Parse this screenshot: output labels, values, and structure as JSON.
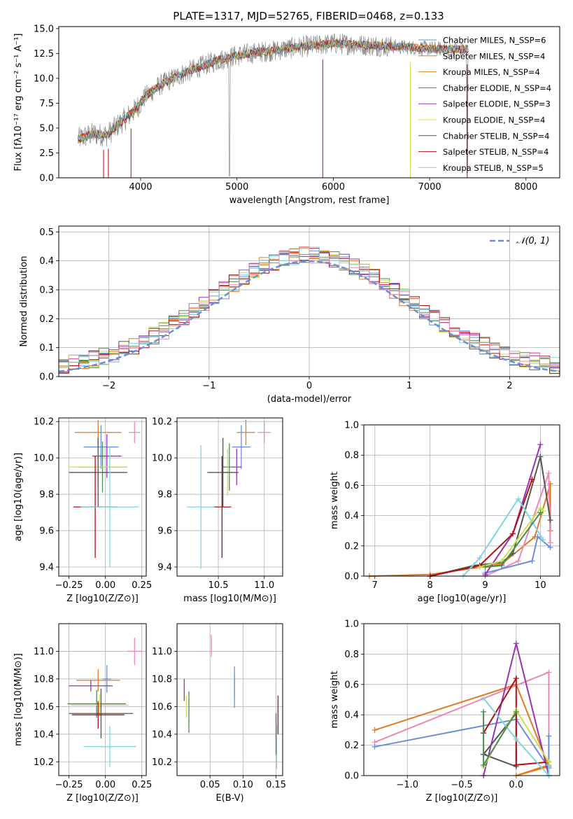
{
  "colors": {
    "chabrier_miles": "#6a8fd8",
    "salpeter_miles": "#e07b20",
    "kroupa_miles": "#e07b20",
    "chabrier_elodie": "#4f8a4f",
    "salpeter_elodie": "#9a32b4",
    "kroupa_elodie": "#c8e050",
    "chabrier_stelib": "#555555",
    "salpeter_stelib": "#b01010",
    "kroupa_stelib": "#7fd6dc",
    "pink": "#e88ab8",
    "gray_spectrum": "#888888",
    "normal_curve": "#6a8fd8"
  },
  "chart_data": [
    {
      "id": "spectrum",
      "type": "line",
      "title": "PLATE=1317, MJD=52765, FIBERID=0468, z=0.133",
      "xlabel": "wavelength [Angstrom, rest frame]",
      "ylabel": "Flux [fλ10⁻¹⁷ erg cm⁻² s⁻¹ A⁻¹]",
      "xlim": [
        3150,
        8350
      ],
      "ylim": [
        0,
        15.2
      ],
      "xticks": [
        "4000",
        "5000",
        "6000",
        "7000",
        "8000"
      ],
      "yticks": [
        "0.0",
        "2.5",
        "5.0",
        "7.5",
        "10.0",
        "12.5",
        "15.0"
      ],
      "legend_position": "right",
      "continuum": {
        "x": [
          3350,
          3500,
          3650,
          3800,
          3950,
          4050,
          4200,
          4400,
          4600,
          4800,
          5000,
          5200,
          5400,
          5600,
          5800,
          6000,
          6200,
          6400,
          6600,
          6800,
          7000,
          7200,
          7400
        ],
        "y": [
          3.9,
          4.4,
          4.3,
          5.6,
          6.9,
          8.2,
          9.3,
          10.3,
          11.1,
          11.8,
          12.3,
          12.6,
          12.8,
          13.1,
          13.3,
          13.5,
          13.4,
          13.3,
          13.2,
          13.1,
          13.0,
          12.9,
          12.9
        ]
      },
      "series": [
        {
          "name": "Chabrier MILES, N_SSP=6",
          "color": "#6a8fd8"
        },
        {
          "name": "Salpeter MILES, N_SSP=4",
          "color": "#e07b20"
        },
        {
          "name": "Kroupa MILES, N_SSP=4",
          "color": "#e07b20"
        },
        {
          "name": "Chabrier ELODIE, N_SSP=4",
          "color": "#4f8a4f"
        },
        {
          "name": "Salpeter ELODIE, N_SSP=3",
          "color": "#9a32b4"
        },
        {
          "name": "Kroupa ELODIE, N_SSP=4",
          "color": "#c8e050"
        },
        {
          "name": "Chabrier STELIB, N_SSP=4",
          "color": "#555555"
        },
        {
          "name": "Salpeter STELIB, N_SSP=4",
          "color": "#b01010"
        },
        {
          "name": "Kroupa STELIB, N_SSP=5",
          "color": "#7fd6dc"
        }
      ]
    },
    {
      "id": "histogram",
      "type": "bar",
      "xlabel": "(data-model)/error",
      "ylabel": "Normed distribution",
      "xlim": [
        -2.5,
        2.5
      ],
      "ylim": [
        0,
        0.52
      ],
      "xticks": [
        "−2",
        "−1",
        "0",
        "1",
        "2"
      ],
      "yticks": [
        "0.0",
        "0.1",
        "0.2",
        "0.3",
        "0.4",
        "0.5"
      ],
      "legend": [
        "𝒩(0, 1)"
      ],
      "legend_position": "top-right",
      "bin_width": 0.1,
      "bin_start": -2.5,
      "bins_left_values": [
        0.02,
        0.03,
        0.04,
        0.06,
        0.07,
        0.06,
        0.07,
        0.08,
        0.1,
        0.12,
        0.13,
        0.15,
        0.17,
        0.19,
        0.21,
        0.23,
        0.25,
        0.27,
        0.3,
        0.31,
        0.33,
        0.35,
        0.36,
        0.37,
        0.4,
        0.44,
        0.42
      ]
    },
    {
      "id": "age-vs-Z",
      "type": "scatter",
      "xlabel": "Z [log10(Z/Z⊙)]",
      "ylabel": "age  [log10(age/yr)]",
      "xlim": [
        -0.32,
        0.28
      ],
      "ylim": [
        9.35,
        10.22
      ],
      "xticks": [
        "−0.25",
        "0.00",
        "0.25"
      ],
      "yticks": [
        "9.4",
        "9.6",
        "9.8",
        "10.0",
        "10.2"
      ],
      "points": [
        {
          "x": 0.2,
          "xerr": 0.04,
          "y": 10.14,
          "yerr": 0.06,
          "color": "#e88ab8"
        },
        {
          "x": -0.05,
          "xerr": 0.16,
          "y": 10.14,
          "yerr": 0.07,
          "color": "#e07b20"
        },
        {
          "x": -0.03,
          "xerr": 0.12,
          "y": 10.06,
          "yerr": 0.12,
          "color": "#6a8fd8"
        },
        {
          "x": 0.01,
          "xerr": 0.1,
          "y": 10.01,
          "yerr": 0.12,
          "color": "#9a32b4"
        },
        {
          "x": -0.02,
          "xerr": 0.17,
          "y": 9.95,
          "yerr": 0.14,
          "color": "#4f8a4f"
        },
        {
          "x": -0.05,
          "xerr": 0.2,
          "y": 9.95,
          "yerr": 0.11,
          "color": "#c8e050"
        },
        {
          "x": -0.05,
          "xerr": 0.2,
          "y": 9.92,
          "yerr": 0.19,
          "color": "#555555"
        },
        {
          "x": -0.07,
          "xerr": 0.15,
          "y": 9.73,
          "yerr": 0.28,
          "color": "#b01010"
        },
        {
          "x": 0.03,
          "xerr": 0.2,
          "y": 9.73,
          "yerr": 0.33,
          "color": "#7fd6dc"
        }
      ]
    },
    {
      "id": "age-vs-mass",
      "type": "scatter",
      "xlabel": "mass [log10(M/M⊙)]",
      "ylabel": "",
      "xlim": [
        10.05,
        11.2
      ],
      "ylim": [
        9.35,
        10.22
      ],
      "xticks": [
        "10.5",
        "11.0"
      ],
      "yticks": [
        "9.4",
        "9.6",
        "9.8",
        "10.0",
        "10.2"
      ],
      "points": [
        {
          "x": 11.0,
          "xerr": 0.07,
          "y": 10.14,
          "yerr": 0.06,
          "color": "#e88ab8"
        },
        {
          "x": 10.8,
          "xerr": 0.1,
          "y": 10.14,
          "yerr": 0.07,
          "color": "#e07b20"
        },
        {
          "x": 10.75,
          "xerr": 0.1,
          "y": 10.06,
          "yerr": 0.12,
          "color": "#6a8fd8"
        },
        {
          "x": 10.7,
          "xerr": 0.05,
          "y": 9.95,
          "yerr": 0.1,
          "color": "#9a32b4"
        },
        {
          "x": 10.62,
          "xerr": 0.08,
          "y": 9.95,
          "yerr": 0.13,
          "color": "#4f8a4f"
        },
        {
          "x": 10.6,
          "xerr": 0.05,
          "y": 9.92,
          "yerr": 0.13,
          "color": "#c8e050"
        },
        {
          "x": 10.55,
          "xerr": 0.17,
          "y": 9.92,
          "yerr": 0.19,
          "color": "#555555"
        },
        {
          "x": 10.54,
          "xerr": 0.1,
          "y": 9.73,
          "yerr": 0.28,
          "color": "#b01010"
        },
        {
          "x": 10.31,
          "xerr": 0.15,
          "y": 9.73,
          "yerr": 0.34,
          "color": "#7fd6dc"
        }
      ]
    },
    {
      "id": "mass-weight-vs-age",
      "type": "line",
      "xlabel": "age  [log10(age/yr)]",
      "ylabel": "mass weight",
      "xlim": [
        6.8,
        10.35
      ],
      "ylim": [
        0,
        1.0
      ],
      "xticks": [
        "7",
        "8",
        "9",
        "10"
      ],
      "yticks": [
        "0.0",
        "0.2",
        "0.4",
        "0.6",
        "0.8",
        "1.0"
      ],
      "series": [
        {
          "color": "#e07b20",
          "x": [
            6.9,
            8.0,
            9.3,
            9.9,
            10.18,
            10.18
          ],
          "y": [
            0.0,
            0.01,
            0.08,
            0.26,
            0.61,
            0.3
          ]
        },
        {
          "color": "#e88ab8",
          "x": [
            9.0,
            9.6,
            10.15,
            10.18
          ],
          "y": [
            0.0,
            0.1,
            0.68,
            0.22
          ]
        },
        {
          "color": "#6a8fd8",
          "x": [
            9.0,
            9.85,
            9.95,
            10.18
          ],
          "y": [
            0.02,
            0.1,
            0.26,
            0.19
          ]
        },
        {
          "color": "#9a32b4",
          "x": [
            9.0,
            9.5,
            10.0
          ],
          "y": [
            0.01,
            0.28,
            0.87
          ]
        },
        {
          "color": "#555555",
          "x": [
            8.0,
            8.8,
            9.3,
            9.5,
            10.0,
            10.18
          ],
          "y": [
            0.0,
            0.07,
            0.09,
            0.15,
            0.79,
            0.37
          ]
        },
        {
          "color": "#b01010",
          "x": [
            8.0,
            8.9,
            9.5,
            9.85
          ],
          "y": [
            0.0,
            0.07,
            0.28,
            0.64
          ]
        },
        {
          "color": "#7fd6dc",
          "x": [
            8.6,
            8.9,
            9.6,
            10.05
          ],
          "y": [
            0.0,
            0.12,
            0.51,
            0.24
          ]
        },
        {
          "color": "#c8e050",
          "x": [
            8.9,
            9.3,
            10.0,
            10.05
          ],
          "y": [
            0.06,
            0.1,
            0.45,
            0.43
          ]
        },
        {
          "color": "#4f8a4f",
          "x": [
            9.0,
            9.3,
            10.0
          ],
          "y": [
            0.06,
            0.07,
            0.42
          ]
        }
      ]
    },
    {
      "id": "mass-vs-Z",
      "type": "scatter",
      "xlabel": "Z [log10(Z/Z⊙)]",
      "ylabel": "mass [log10(M/M⊙)]",
      "xlim": [
        -0.32,
        0.28
      ],
      "ylim": [
        10.1,
        11.2
      ],
      "xticks": [
        "−0.25",
        "0.00",
        "0.25"
      ],
      "yticks": [
        "10.2",
        "10.4",
        "10.6",
        "10.8",
        "11.0"
      ],
      "points": [
        {
          "x": 0.2,
          "xerr": 0.05,
          "y": 11.0,
          "yerr": 0.1,
          "color": "#e88ab8"
        },
        {
          "x": -0.05,
          "xerr": 0.15,
          "y": 10.79,
          "yerr": 0.08,
          "color": "#e07b20"
        },
        {
          "x": 0.01,
          "xerr": 0.03,
          "y": 10.8,
          "yerr": 0.1,
          "color": "#6a8fd8"
        },
        {
          "x": -0.1,
          "xerr": 0.15,
          "y": 10.75,
          "yerr": 0.04,
          "color": "#9a32b4"
        },
        {
          "x": -0.06,
          "xerr": 0.2,
          "y": 10.62,
          "yerr": 0.1,
          "color": "#4f8a4f"
        },
        {
          "x": -0.04,
          "xerr": 0.2,
          "y": 10.61,
          "yerr": 0.08,
          "color": "#c8e050"
        },
        {
          "x": -0.03,
          "xerr": 0.22,
          "y": 10.55,
          "yerr": 0.18,
          "color": "#555555"
        },
        {
          "x": -0.05,
          "xerr": 0.18,
          "y": 10.54,
          "yerr": 0.1,
          "color": "#b01010"
        },
        {
          "x": 0.03,
          "xerr": 0.18,
          "y": 10.31,
          "yerr": 0.15,
          "color": "#7fd6dc"
        }
      ]
    },
    {
      "id": "mass-vs-EBV",
      "type": "scatter",
      "xlabel": "E(B-V)",
      "ylabel": "",
      "xlim": [
        0.0,
        0.16
      ],
      "ylim": [
        10.1,
        11.2
      ],
      "xticks": [
        "0.05",
        "0.10",
        "0.15"
      ],
      "yticks": [
        "10.2",
        "10.4",
        "10.6",
        "10.8",
        "11.0"
      ],
      "points": [
        {
          "x": 0.052,
          "xerr": 0.0,
          "y": 11.04,
          "yerr": 0.08,
          "color": "#e88ab8"
        },
        {
          "x": 0.087,
          "xerr": 0.0,
          "y": 10.74,
          "yerr": 0.08,
          "color": "#e07b20"
        },
        {
          "x": 0.087,
          "xerr": 0.0,
          "y": 10.74,
          "yerr": 0.15,
          "color": "#6a8fd8"
        },
        {
          "x": 0.011,
          "xerr": 0.0,
          "y": 10.72,
          "yerr": 0.08,
          "color": "#9a32b4"
        },
        {
          "x": 0.018,
          "xerr": 0.0,
          "y": 10.56,
          "yerr": 0.15,
          "color": "#4f8a4f"
        },
        {
          "x": 0.014,
          "xerr": 0.0,
          "y": 10.6,
          "yerr": 0.08,
          "color": "#c8e050"
        },
        {
          "x": 0.15,
          "xerr": 0.0,
          "y": 10.4,
          "yerr": 0.15,
          "color": "#555555"
        },
        {
          "x": 0.153,
          "xerr": 0.0,
          "y": 10.54,
          "yerr": 0.14,
          "color": "#b01010"
        },
        {
          "x": 0.151,
          "xerr": 0.0,
          "y": 10.31,
          "yerr": 0.16,
          "color": "#7fd6dc"
        }
      ]
    },
    {
      "id": "mass-weight-vs-Z",
      "type": "line",
      "xlabel": "Z [log10(Z/Z⊙)]",
      "ylabel": "mass weight",
      "xlim": [
        -1.4,
        0.4
      ],
      "ylim": [
        0,
        1.0
      ],
      "xticks": [
        "−1.0",
        "−0.5",
        "0.0"
      ],
      "yticks": [
        "0.0",
        "0.2",
        "0.4",
        "0.6",
        "0.8",
        "1.0"
      ],
      "series": [
        {
          "color": "#e07b20",
          "x": [
            -1.3,
            0.0,
            0.3,
            0.0,
            0.3
          ],
          "y": [
            0.3,
            0.6,
            0.06,
            0.0,
            0.07
          ]
        },
        {
          "color": "#e88ab8",
          "x": [
            -1.3,
            0.3,
            0.3
          ],
          "y": [
            0.22,
            0.68,
            0.05
          ]
        },
        {
          "color": "#6a8fd8",
          "x": [
            -1.3,
            0.0,
            0.3,
            0.3
          ],
          "y": [
            0.19,
            0.37,
            0.05,
            0.26
          ]
        },
        {
          "color": "#9a32b4",
          "x": [
            -0.3,
            0.0,
            0.3
          ],
          "y": [
            0.0,
            0.87,
            0.0
          ]
        },
        {
          "color": "#555555",
          "x": [
            -0.3,
            0.0,
            0.0,
            -0.3
          ],
          "y": [
            0.14,
            0.06,
            0.41,
            0.14
          ]
        },
        {
          "color": "#b01010",
          "x": [
            -0.3,
            0.0,
            0.0,
            0.3
          ],
          "y": [
            0.28,
            0.64,
            0.07,
            0.09
          ]
        },
        {
          "color": "#7fd6dc",
          "x": [
            -0.3,
            0.0,
            0.3,
            0.3
          ],
          "y": [
            0.51,
            0.24,
            0.0,
            0.07
          ]
        },
        {
          "color": "#c8e050",
          "x": [
            -0.3,
            0.0,
            0.3
          ],
          "y": [
            0.06,
            0.43,
            0.09
          ]
        },
        {
          "color": "#4f8a4f",
          "x": [
            -0.3,
            -0.3,
            0.0
          ],
          "y": [
            0.42,
            0.07,
            0.42
          ]
        }
      ]
    }
  ]
}
